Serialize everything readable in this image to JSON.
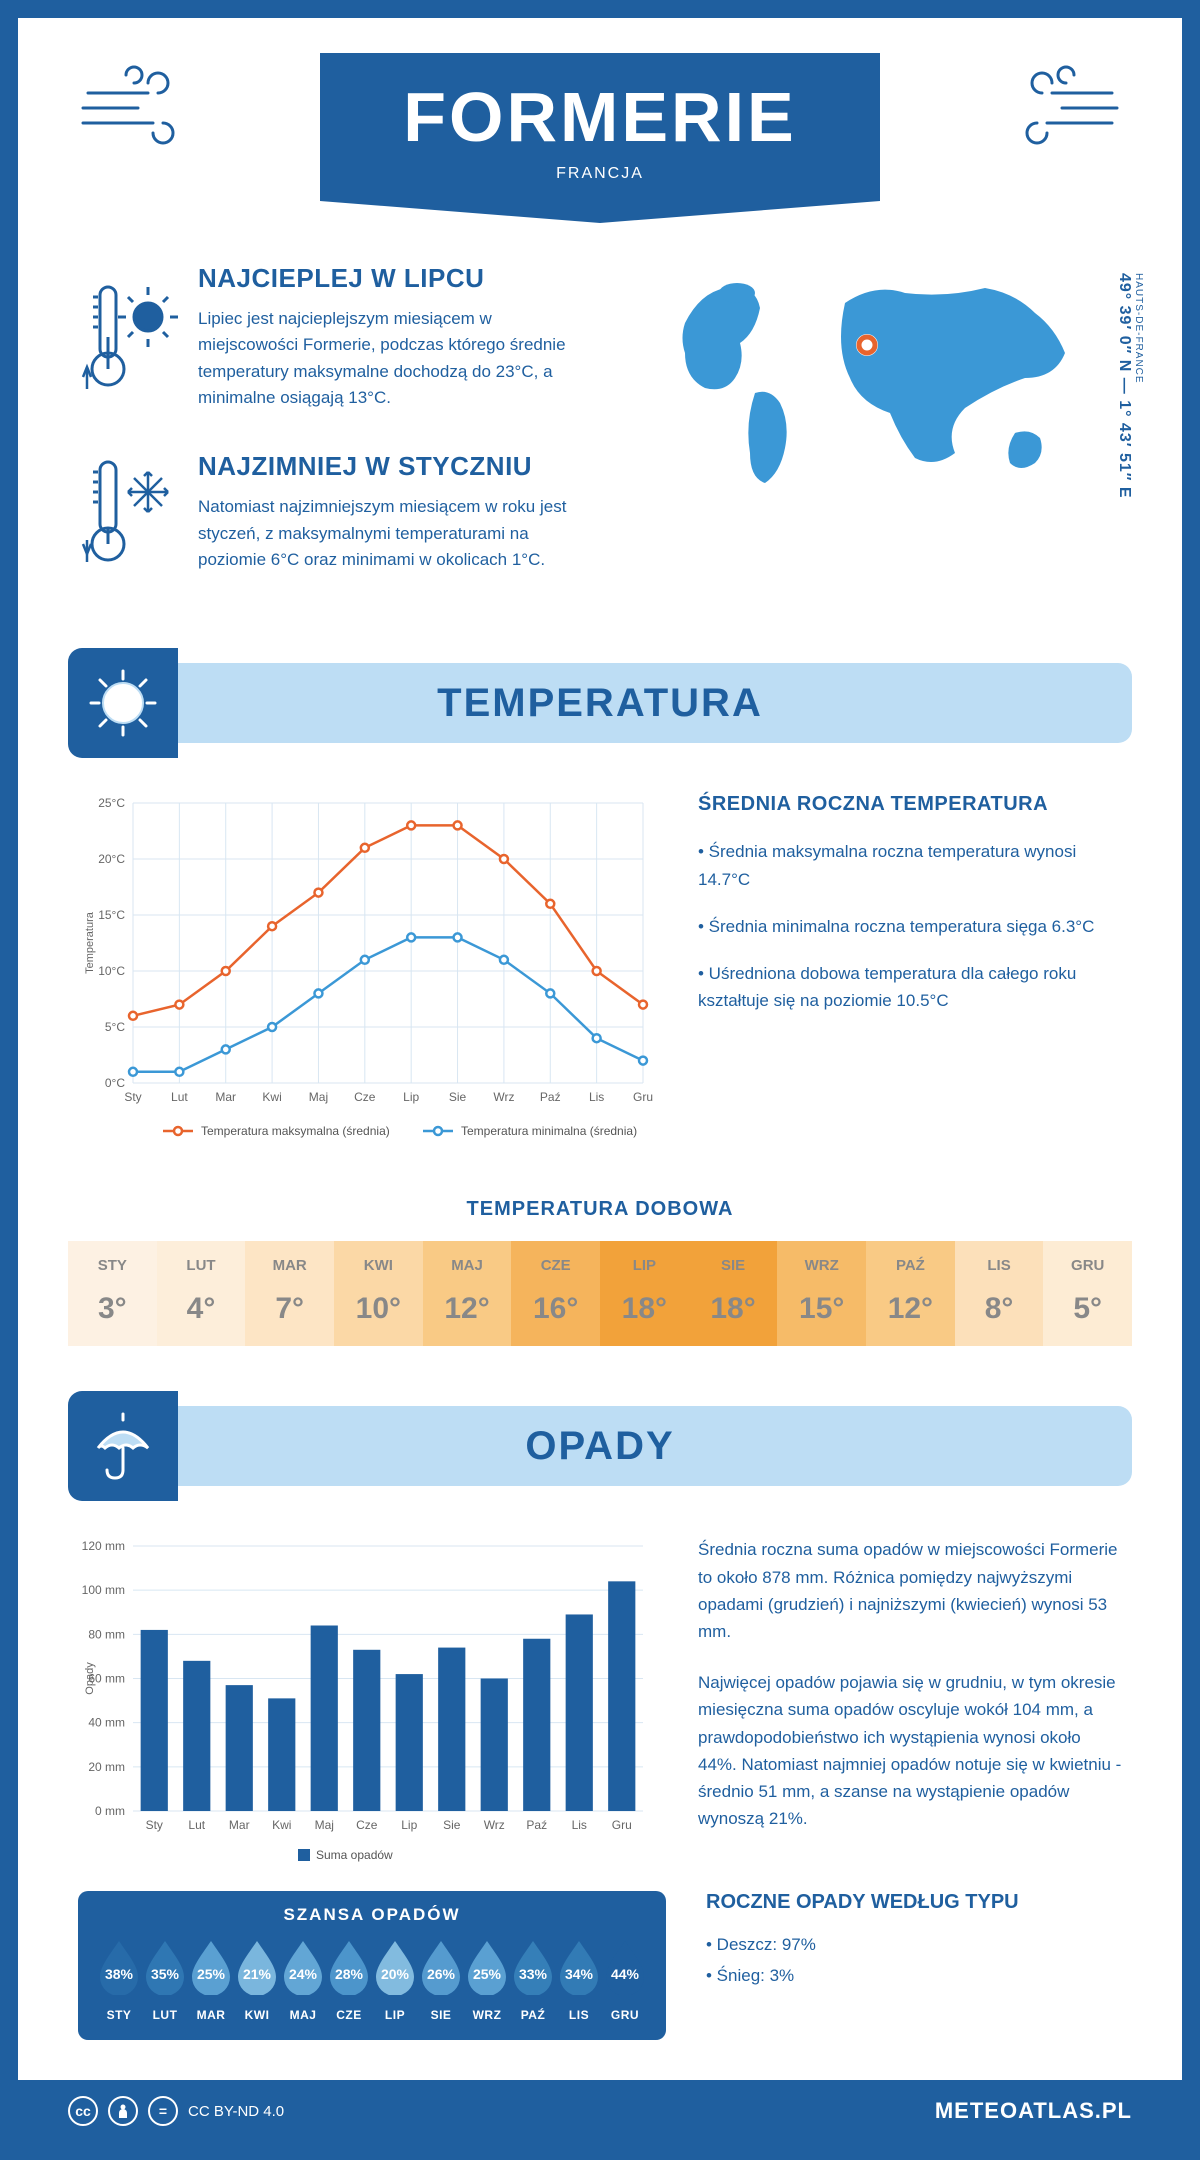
{
  "header": {
    "title": "FORMERIE",
    "subtitle": "FRANCJA"
  },
  "coords": {
    "region": "HAUTS-DE-FRANCE",
    "lat": "49° 39′ 0″ N",
    "lon": "1° 43′ 51″ E"
  },
  "warm": {
    "title": "NAJCIEPLEJ W LIPCU",
    "text": "Lipiec jest najcieplejszym miesiącem w miejscowości Formerie, podczas którego średnie temperatury maksymalne dochodzą do 23°C, a minimalne osiągają 13°C."
  },
  "cold": {
    "title": "NAJZIMNIEJ W STYCZNIU",
    "text": "Natomiast najzimniejszym miesiącem w roku jest styczeń, z maksymalnymi temperaturami na poziomie 6°C oraz minimami w okolicach 1°C."
  },
  "temp_section": {
    "title": "TEMPERATURA",
    "side_title": "ŚREDNIA ROCZNA TEMPERATURA",
    "bullet1": "• Średnia maksymalna roczna temperatura wynosi 14.7°C",
    "bullet2": "• Średnia minimalna roczna temperatura sięga 6.3°C",
    "bullet3": "• Uśredniona dobowa temperatura dla całego roku kształtuje się na poziomie 10.5°C",
    "chart": {
      "type": "line",
      "ylabel": "Temperatura",
      "months": [
        "Sty",
        "Lut",
        "Mar",
        "Kwi",
        "Maj",
        "Cze",
        "Lip",
        "Sie",
        "Wrz",
        "Paź",
        "Lis",
        "Gru"
      ],
      "max_series": [
        6,
        7,
        10,
        14,
        17,
        21,
        23,
        23,
        20,
        16,
        10,
        7
      ],
      "min_series": [
        1,
        1,
        3,
        5,
        8,
        11,
        13,
        13,
        11,
        8,
        4,
        2
      ],
      "ylim": [
        0,
        25
      ],
      "ytick_step": 5,
      "colors": {
        "max": "#e8642d",
        "min": "#3b98d6",
        "grid": "#d8e6f2",
        "bg": "#ffffff"
      },
      "legend_max": "Temperatura maksymalna (średnia)",
      "legend_min": "Temperatura minimalna (średnia)"
    },
    "daily_title": "TEMPERATURA DOBOWA",
    "daily": [
      {
        "m": "STY",
        "v": "3°",
        "bg": "#fdf1e3"
      },
      {
        "m": "LUT",
        "v": "4°",
        "bg": "#fdeeda"
      },
      {
        "m": "MAR",
        "v": "7°",
        "bg": "#fde5c5"
      },
      {
        "m": "KWI",
        "v": "10°",
        "bg": "#fbd8a6"
      },
      {
        "m": "MAJ",
        "v": "12°",
        "bg": "#f9ca85"
      },
      {
        "m": "CZE",
        "v": "16°",
        "bg": "#f5b45c"
      },
      {
        "m": "LIP",
        "v": "18°",
        "bg": "#f2a23a"
      },
      {
        "m": "SIE",
        "v": "18°",
        "bg": "#f2a23a"
      },
      {
        "m": "WRZ",
        "v": "15°",
        "bg": "#f6bb68"
      },
      {
        "m": "PAŹ",
        "v": "12°",
        "bg": "#f9ca85"
      },
      {
        "m": "LIS",
        "v": "8°",
        "bg": "#fce0ba"
      },
      {
        "m": "GRU",
        "v": "5°",
        "bg": "#fdecd4"
      }
    ]
  },
  "precip_section": {
    "title": "OPADY",
    "p1": "Średnia roczna suma opadów w miejscowości Formerie to około 878 mm. Różnica pomiędzy najwyższymi opadami (grudzień) i najniższymi (kwiecień) wynosi 53 mm.",
    "p2": "Najwięcej opadów pojawia się w grudniu, w tym okresie miesięczna suma opadów oscyluje wokół 104 mm, a prawdopodobieństwo ich wystąpienia wynosi około 44%. Natomiast najmniej opadów notuje się w kwietniu - średnio 51 mm, a szanse na wystąpienie opadów wynoszą 21%.",
    "chart": {
      "type": "bar",
      "ylabel": "Opady",
      "months": [
        "Sty",
        "Lut",
        "Mar",
        "Kwi",
        "Maj",
        "Cze",
        "Lip",
        "Sie",
        "Wrz",
        "Paź",
        "Lis",
        "Gru"
      ],
      "values": [
        82,
        68,
        57,
        51,
        84,
        73,
        62,
        74,
        60,
        78,
        89,
        104
      ],
      "ylim": [
        0,
        120
      ],
      "ytick_step": 20,
      "bar_color": "#1f5f9f",
      "grid_color": "#d8e6f2",
      "legend": "Suma opadów"
    },
    "chance_title": "SZANSA OPADÓW",
    "chance": [
      {
        "m": "STY",
        "v": "38%",
        "c": "#276ba9"
      },
      {
        "m": "LUT",
        "v": "35%",
        "c": "#2f77b3"
      },
      {
        "m": "MAR",
        "v": "25%",
        "c": "#5aa0d2"
      },
      {
        "m": "KWI",
        "v": "21%",
        "c": "#7ab6dd"
      },
      {
        "m": "MAJ",
        "v": "24%",
        "c": "#62a6d5"
      },
      {
        "m": "CZE",
        "v": "28%",
        "c": "#4c95cb"
      },
      {
        "m": "LIP",
        "v": "20%",
        "c": "#82bbdf"
      },
      {
        "m": "SIE",
        "v": "26%",
        "c": "#559bcf"
      },
      {
        "m": "WRZ",
        "v": "25%",
        "c": "#5aa0d2"
      },
      {
        "m": "PAŹ",
        "v": "33%",
        "c": "#357fb8"
      },
      {
        "m": "LIS",
        "v": "34%",
        "c": "#327bb5"
      },
      {
        "m": "GRU",
        "v": "44%",
        "c": "#1f5f9f"
      }
    ],
    "type_title": "ROCZNE OPADY WEDŁUG TYPU",
    "type_rain": "• Deszcz: 97%",
    "type_snow": "• Śnieg: 3%"
  },
  "footer": {
    "license": "CC BY-ND 4.0",
    "site": "METEOATLAS.PL"
  },
  "colors": {
    "brand": "#1f5f9f",
    "light": "#bdddf4",
    "map": "#3b98d6"
  }
}
